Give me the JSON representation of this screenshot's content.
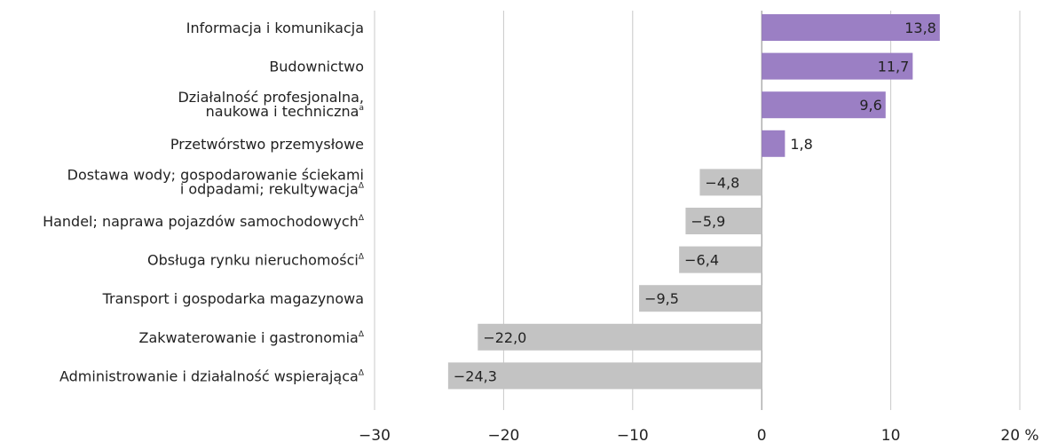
{
  "chart_data": {
    "type": "bar",
    "orientation": "horizontal",
    "title": "",
    "xlabel": "",
    "ylabel": "",
    "xlim": [
      -30,
      20
    ],
    "xticks": [
      -30,
      -20,
      -10,
      0,
      10,
      20
    ],
    "xtick_labels": [
      "−30",
      "−20",
      "−10",
      "0",
      "10",
      "20 %"
    ],
    "grid": true,
    "categories": [
      {
        "lines": [
          "Informacja i komunikacja"
        ],
        "sup": ""
      },
      {
        "lines": [
          "Budownictwo"
        ],
        "sup": ""
      },
      {
        "lines": [
          "Działalność profesjonalna,",
          "naukowa i techniczna"
        ],
        "sup": "a"
      },
      {
        "lines": [
          "Przetwórstwo przemysłowe"
        ],
        "sup": ""
      },
      {
        "lines": [
          "Dostawa wody; gospodarowanie ściekami",
          "i odpadami; rekultywacja"
        ],
        "sup": "Δ"
      },
      {
        "lines": [
          "Handel; naprawa pojazdów samochodowych"
        ],
        "sup": "Δ"
      },
      {
        "lines": [
          "Obsługa rynku nieruchomości"
        ],
        "sup": "Δ"
      },
      {
        "lines": [
          "Transport i gospodarka magazynowa"
        ],
        "sup": ""
      },
      {
        "lines": [
          "Zakwaterowanie i gastronomia"
        ],
        "sup": "Δ"
      },
      {
        "lines": [
          "Administrowanie i działalność wspierająca"
        ],
        "sup": "Δ"
      }
    ],
    "values": [
      13.8,
      11.7,
      9.6,
      1.8,
      -4.8,
      -5.9,
      -6.4,
      -9.5,
      -22.0,
      -24.3
    ],
    "value_labels": [
      "13,8",
      "11,7",
      "9,6",
      "1,8",
      "−4,8",
      "−5,9",
      "−6,4",
      "−9,5",
      "−22,0",
      "−24,3"
    ],
    "colors": {
      "positive": "#9b7fc4",
      "negative": "#c3c3c3",
      "grid": "#c8c8c8",
      "axis": "#888888"
    }
  }
}
